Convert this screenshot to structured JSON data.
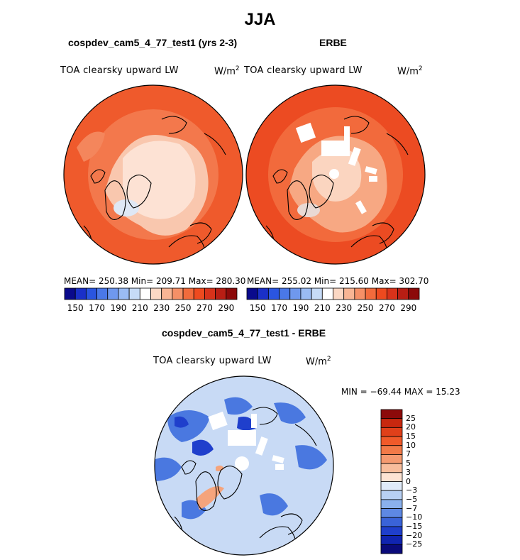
{
  "figure": {
    "title": "JJA",
    "left_panel": {
      "title": "cospdev_cam5_4_77_test1 (yrs 2-3)",
      "variable": "TOA clearsky upward LW",
      "units": "W/m",
      "units_exp": "2",
      "stats": "MEAN= 250.38   Min= 209.71   Max= 280.30",
      "base_color": "#f05a2d"
    },
    "right_panel": {
      "title": "ERBE",
      "variable": "TOA clearsky upward LW",
      "units": "W/m",
      "units_exp": "2",
      "stats": "MEAN= 255.02   Min= 215.60   Max= 302.70",
      "base_color": "#f0532a"
    },
    "diff_panel": {
      "title": "cospdev_cam5_4_77_test1 - ERBE",
      "variable": "TOA clearsky upward LW",
      "units": "W/m",
      "units_exp": "2",
      "stats": "MIN = −69.44 MAX =   15.23",
      "base_color": "#c8daf5"
    }
  },
  "colorbar_horizontal": {
    "labels": [
      "150",
      "170",
      "190",
      "210",
      "230",
      "250",
      "270",
      "290"
    ],
    "colors": [
      "#0a0a8c",
      "#1a30c8",
      "#2a55e0",
      "#4a78e8",
      "#6f98ee",
      "#9abbf3",
      "#c6dbf7",
      "#ffffff",
      "#fbd8c4",
      "#f8b594",
      "#f59067",
      "#f26b3c",
      "#ee4a1f",
      "#d8321a",
      "#b81e14",
      "#8c0a0a"
    ]
  },
  "colorbar_vertical": {
    "labels": [
      "25",
      "20",
      "15",
      "10",
      "7",
      "5",
      "3",
      "0",
      "−3",
      "−5",
      "−7",
      "−10",
      "−15",
      "−20",
      "−25"
    ],
    "colors": [
      "#8c0a0a",
      "#c8280f",
      "#e0401a",
      "#f05a2a",
      "#f27a48",
      "#f59a70",
      "#f8bd9c",
      "#fde3d3",
      "#dfeaf8",
      "#b8d0f3",
      "#8ab0ec",
      "#5e88e3",
      "#3a63d8",
      "#1f3fcc",
      "#1024b0",
      "#0a0a7a"
    ]
  }
}
